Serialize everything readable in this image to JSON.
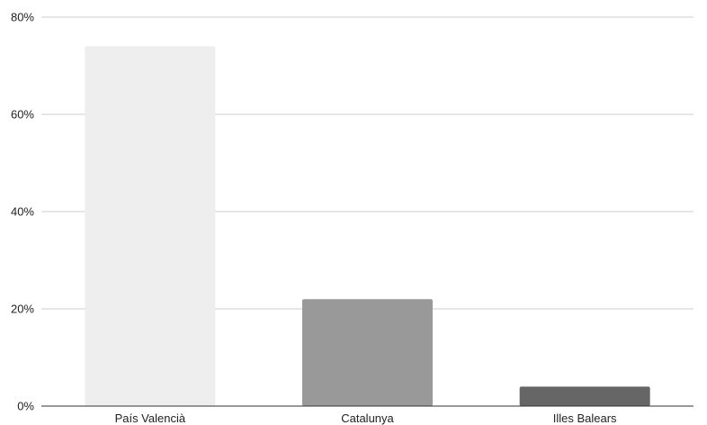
{
  "chart_data": {
    "type": "bar",
    "categories": [
      "País Valencià",
      "Catalunya",
      "Illes Balears"
    ],
    "values": [
      74,
      22,
      4
    ],
    "colors": [
      "#eeeeee",
      "#999999",
      "#666666"
    ],
    "ylim": [
      0,
      80
    ],
    "yticks": [
      0,
      20,
      40,
      60,
      80
    ],
    "ytick_labels": [
      "0%",
      "20%",
      "40%",
      "60%",
      "80%"
    ],
    "grid": true,
    "gridline_color": "#cccccc",
    "axis_color": "#333333",
    "legend": "none"
  }
}
